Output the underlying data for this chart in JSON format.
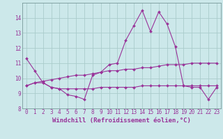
{
  "background_color": "#cce8ea",
  "grid_color": "#aacccc",
  "line_color": "#993399",
  "xlabel": "Windchill (Refroidissement éolien,°C)",
  "x_values": [
    0,
    1,
    2,
    3,
    4,
    5,
    6,
    7,
    8,
    9,
    10,
    11,
    12,
    13,
    14,
    15,
    16,
    17,
    18,
    19,
    20,
    21,
    22,
    23
  ],
  "line1_y": [
    11.3,
    10.5,
    9.7,
    9.4,
    9.3,
    8.9,
    8.8,
    8.6,
    10.2,
    10.4,
    10.9,
    11.0,
    12.5,
    13.5,
    14.5,
    13.1,
    14.4,
    13.6,
    12.1,
    9.5,
    9.4,
    9.4,
    8.6,
    9.4
  ],
  "line2_y": [
    9.5,
    9.7,
    9.7,
    9.4,
    9.3,
    9.3,
    9.3,
    9.3,
    9.3,
    9.4,
    9.4,
    9.4,
    9.4,
    9.4,
    9.5,
    9.5,
    9.5,
    9.5,
    9.5,
    9.5,
    9.5,
    9.5,
    9.5,
    9.5
  ],
  "line3_y": [
    9.5,
    9.7,
    9.8,
    9.9,
    10.0,
    10.1,
    10.2,
    10.2,
    10.3,
    10.4,
    10.5,
    10.5,
    10.6,
    10.6,
    10.7,
    10.7,
    10.8,
    10.9,
    10.9,
    10.9,
    11.0,
    11.0,
    11.0,
    11.0
  ],
  "ylim_min": 8,
  "ylim_max": 15,
  "xlim_min": -0.5,
  "xlim_max": 23.5,
  "yticks": [
    8,
    9,
    10,
    11,
    12,
    13,
    14
  ],
  "xticks": [
    0,
    1,
    2,
    3,
    4,
    5,
    6,
    7,
    8,
    9,
    10,
    11,
    12,
    13,
    14,
    15,
    16,
    17,
    18,
    19,
    20,
    21,
    22,
    23
  ],
  "tick_fontsize": 5.5,
  "xlabel_fontsize": 6.5,
  "marker_size": 2.0,
  "line_width": 0.8
}
